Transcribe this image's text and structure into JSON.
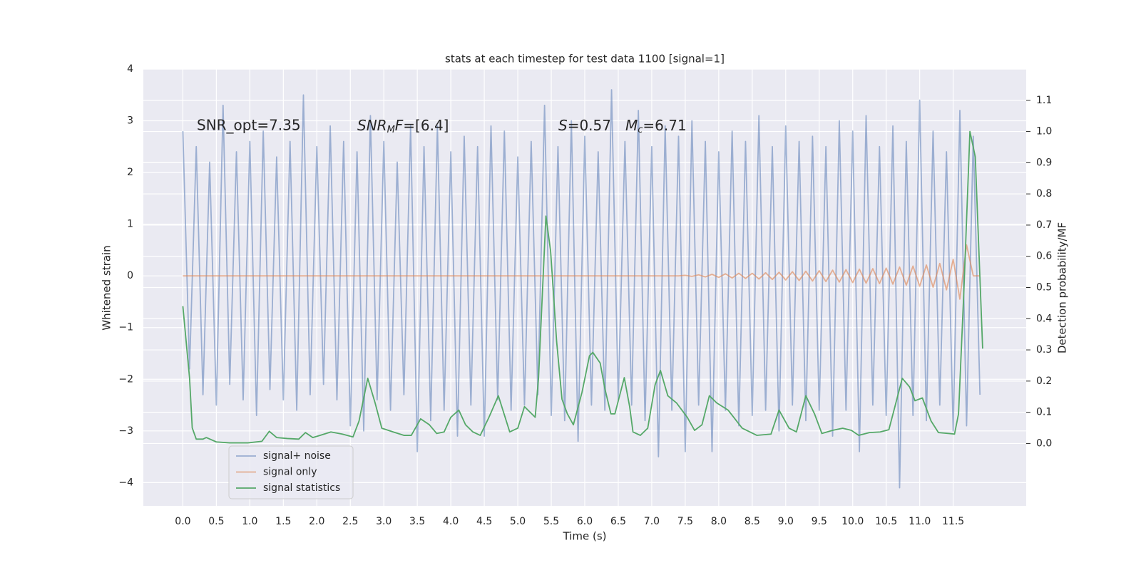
{
  "chart_data": {
    "type": "line",
    "title": "stats at each timestep for test data 1100 [signal=1]",
    "xlabel": "Time (s)",
    "ylabel": "Whitened strain",
    "y2label": "Detection probability/MF",
    "annotations": [
      [
        "SNR_opt=7.35"
      ],
      [
        "SNR",
        "M",
        "F",
        "=[6.4]"
      ],
      [
        "S",
        "=0.57",
        "M",
        "c",
        "=6.71"
      ]
    ],
    "xlim": [
      -0.59,
      12.59
    ],
    "ylim": [
      -4.45,
      4.0
    ],
    "y2lim": [
      -0.2,
      1.2
    ],
    "xticks": [
      {
        "value": 0,
        "label": "0.0"
      },
      {
        "value": 0.5,
        "label": "0.5"
      },
      {
        "value": 1,
        "label": "1.0"
      },
      {
        "value": 1.5,
        "label": "1.5"
      },
      {
        "value": 2,
        "label": "2.0"
      },
      {
        "value": 2.5,
        "label": "2.5"
      },
      {
        "value": 3,
        "label": "3.0"
      },
      {
        "value": 3.5,
        "label": "3.5"
      },
      {
        "value": 4,
        "label": "4.0"
      },
      {
        "value": 4.5,
        "label": "4.5"
      },
      {
        "value": 5,
        "label": "5.0"
      },
      {
        "value": 5.5,
        "label": "5.5"
      },
      {
        "value": 6,
        "label": "6.0"
      },
      {
        "value": 6.5,
        "label": "6.5"
      },
      {
        "value": 7,
        "label": "7.0"
      },
      {
        "value": 7.5,
        "label": "7.5"
      },
      {
        "value": 8,
        "label": "8.0"
      },
      {
        "value": 8.5,
        "label": "8.5"
      },
      {
        "value": 9,
        "label": "9.0"
      },
      {
        "value": 9.5,
        "label": "9.5"
      },
      {
        "value": 10,
        "label": "10.0"
      },
      {
        "value": 10.5,
        "label": "10.5"
      },
      {
        "value": 11,
        "label": "11.0"
      },
      {
        "value": 11.5,
        "label": "11.5"
      }
    ],
    "yticks": [
      {
        "value": -4,
        "label": "−4"
      },
      {
        "value": -3,
        "label": "−3"
      },
      {
        "value": -2,
        "label": "−2"
      },
      {
        "value": -1,
        "label": "−1"
      },
      0,
      1,
      2,
      3,
      4
    ],
    "y2ticks": [
      {
        "value": 0,
        "label": "0.0"
      },
      0.1,
      0.2,
      0.3,
      0.4,
      0.5,
      0.6,
      0.7,
      0.8,
      0.9,
      {
        "value": 1,
        "label": "1.0"
      },
      1.1
    ],
    "grid": true,
    "legend": "lower left",
    "series": [
      {
        "name": "signal+ noise",
        "color": "#4c72b0",
        "opacity": 0.5,
        "x": [
          0.0,
          0.1,
          0.2,
          0.3,
          0.4,
          0.5,
          0.6,
          0.7,
          0.8,
          0.9,
          1.0,
          1.1,
          1.2,
          1.3,
          1.4,
          1.5,
          1.6,
          1.7,
          1.8,
          1.9,
          2.0,
          2.1,
          2.2,
          2.3,
          2.4,
          2.5,
          2.6,
          2.7,
          2.8,
          2.9,
          3.0,
          3.1,
          3.2,
          3.3,
          3.4,
          3.5,
          3.6,
          3.7,
          3.8,
          3.9,
          4.0,
          4.1,
          4.2,
          4.3,
          4.4,
          4.5,
          4.6,
          4.7,
          4.8,
          4.9,
          5.0,
          5.1,
          5.2,
          5.3,
          5.4,
          5.5,
          5.6,
          5.7,
          5.8,
          5.9,
          6.0,
          6.1,
          6.2,
          6.3,
          6.4,
          6.5,
          6.6,
          6.7,
          6.8,
          6.9,
          7.0,
          7.1,
          7.2,
          7.3,
          7.4,
          7.5,
          7.6,
          7.7,
          7.8,
          7.9,
          8.0,
          8.1,
          8.2,
          8.3,
          8.4,
          8.5,
          8.6,
          8.7,
          8.8,
          8.9,
          9.0,
          9.1,
          9.2,
          9.3,
          9.4,
          9.5,
          9.6,
          9.7,
          9.8,
          9.9,
          10.0,
          10.1,
          10.2,
          10.3,
          10.4,
          10.5,
          10.6,
          10.7,
          10.8,
          10.9,
          11.0,
          11.1,
          11.2,
          11.3,
          11.4,
          11.5,
          11.6,
          11.7,
          11.8,
          11.9
        ],
        "values": [
          2.8,
          -1.8,
          2.5,
          -2.3,
          2.2,
          -2.5,
          3.3,
          -2.1,
          2.4,
          -2.4,
          2.6,
          -2.7,
          2.8,
          -2.2,
          2.3,
          -2.4,
          2.6,
          -2.6,
          3.5,
          -2.3,
          2.5,
          -2.1,
          2.9,
          -2.4,
          2.6,
          -2.9,
          2.4,
          -3.0,
          3.1,
          -2.4,
          2.6,
          -2.6,
          2.2,
          -2.3,
          2.9,
          -3.4,
          2.5,
          -2.8,
          2.9,
          -2.6,
          2.4,
          -3.1,
          2.7,
          -2.5,
          2.5,
          -3.1,
          2.9,
          -2.4,
          2.8,
          -2.6,
          2.3,
          -2.5,
          2.6,
          -2.3,
          3.3,
          -2.7,
          2.5,
          -2.8,
          3.0,
          -3.2,
          2.7,
          -2.5,
          2.4,
          -2.6,
          3.6,
          -2.4,
          2.6,
          -2.5,
          3.2,
          -2.8,
          2.5,
          -3.5,
          2.9,
          -2.6,
          2.7,
          -3.4,
          3.0,
          -2.5,
          2.6,
          -3.4,
          2.4,
          -2.6,
          2.8,
          -2.9,
          2.6,
          -2.7,
          3.1,
          -2.6,
          2.5,
          -3.0,
          2.9,
          -2.5,
          2.6,
          -2.8,
          2.7,
          -2.6,
          2.5,
          -3.1,
          3.0,
          -2.6,
          2.8,
          -3.4,
          3.1,
          -2.5,
          2.5,
          -2.7,
          2.9,
          -4.1,
          2.6,
          -2.7,
          3.4,
          -2.8,
          2.8,
          -2.5,
          2.4,
          -3.0,
          3.2,
          -2.9,
          2.7,
          -2.3
        ]
      },
      {
        "name": "signal only",
        "color": "#dd8452",
        "opacity": 0.6,
        "x": [
          0.0,
          7.4,
          7.5,
          7.6,
          7.7,
          7.8,
          7.9,
          8.0,
          8.1,
          8.2,
          8.3,
          8.4,
          8.5,
          8.6,
          8.7,
          8.8,
          8.9,
          9.0,
          9.1,
          9.2,
          9.3,
          9.4,
          9.5,
          9.6,
          9.7,
          9.8,
          9.9,
          10.0,
          10.1,
          10.2,
          10.3,
          10.4,
          10.5,
          10.6,
          10.7,
          10.8,
          10.9,
          11.0,
          11.1,
          11.2,
          11.3,
          11.4,
          11.5,
          11.6,
          11.7,
          11.8,
          11.9
        ],
        "values": [
          0,
          0,
          0.01,
          -0.01,
          0.02,
          -0.02,
          0.03,
          -0.03,
          0.04,
          -0.04,
          0.05,
          -0.05,
          0.05,
          -0.06,
          0.06,
          -0.07,
          0.07,
          -0.08,
          0.08,
          -0.09,
          0.09,
          -0.1,
          0.1,
          -0.11,
          0.11,
          -0.12,
          0.12,
          -0.13,
          0.13,
          -0.14,
          0.14,
          -0.15,
          0.15,
          -0.16,
          0.17,
          -0.18,
          0.19,
          -0.2,
          0.21,
          -0.22,
          0.24,
          -0.27,
          0.32,
          -0.45,
          0.6,
          0,
          0
        ]
      },
      {
        "name": "signal statistics",
        "color": "#55a868",
        "axis": "y2",
        "x": [
          0.0,
          0.1,
          0.14,
          0.2,
          0.3,
          0.35,
          0.5,
          0.7,
          0.97,
          1.18,
          1.29,
          1.4,
          1.56,
          1.73,
          1.83,
          1.94,
          2.05,
          2.21,
          2.38,
          2.54,
          2.63,
          2.76,
          2.87,
          2.97,
          3.14,
          3.3,
          3.41,
          3.55,
          3.68,
          3.79,
          3.9,
          4.0,
          4.12,
          4.22,
          4.33,
          4.44,
          4.57,
          4.71,
          4.88,
          5.0,
          5.1,
          5.26,
          5.31,
          5.42,
          5.49,
          5.58,
          5.66,
          5.74,
          5.83,
          5.96,
          6.07,
          6.12,
          6.23,
          6.3,
          6.39,
          6.45,
          6.59,
          6.67,
          6.72,
          6.83,
          6.94,
          7.05,
          7.13,
          7.24,
          7.37,
          7.53,
          7.64,
          7.75,
          7.86,
          7.97,
          8.14,
          8.35,
          8.57,
          8.78,
          8.9,
          9.05,
          9.16,
          9.3,
          9.43,
          9.54,
          9.7,
          9.85,
          9.98,
          10.09,
          10.25,
          10.41,
          10.54,
          10.63,
          10.74,
          10.85,
          10.93,
          11.04,
          11.17,
          11.28,
          11.44,
          11.52,
          11.58,
          11.66,
          11.75,
          11.83,
          11.94
        ],
        "values": [
          0.44,
          0.21,
          0.05,
          0.014,
          0.014,
          0.019,
          0.005,
          0.002,
          0.002,
          0.007,
          0.039,
          0.019,
          0.016,
          0.014,
          0.035,
          0.019,
          0.026,
          0.037,
          0.03,
          0.021,
          0.072,
          0.209,
          0.13,
          0.049,
          0.037,
          0.026,
          0.026,
          0.079,
          0.06,
          0.032,
          0.037,
          0.084,
          0.107,
          0.06,
          0.037,
          0.026,
          0.084,
          0.153,
          0.037,
          0.049,
          0.118,
          0.084,
          0.211,
          0.729,
          0.617,
          0.327,
          0.142,
          0.095,
          0.06,
          0.165,
          0.281,
          0.292,
          0.258,
          0.176,
          0.095,
          0.095,
          0.211,
          0.118,
          0.037,
          0.026,
          0.049,
          0.188,
          0.234,
          0.153,
          0.13,
          0.084,
          0.042,
          0.06,
          0.153,
          0.13,
          0.107,
          0.049,
          0.026,
          0.03,
          0.107,
          0.049,
          0.037,
          0.153,
          0.095,
          0.032,
          0.042,
          0.049,
          0.042,
          0.026,
          0.035,
          0.037,
          0.044,
          0.118,
          0.209,
          0.181,
          0.137,
          0.146,
          0.072,
          0.035,
          0.032,
          0.03,
          0.095,
          0.49,
          1.0,
          0.919,
          0.304
        ]
      }
    ]
  }
}
